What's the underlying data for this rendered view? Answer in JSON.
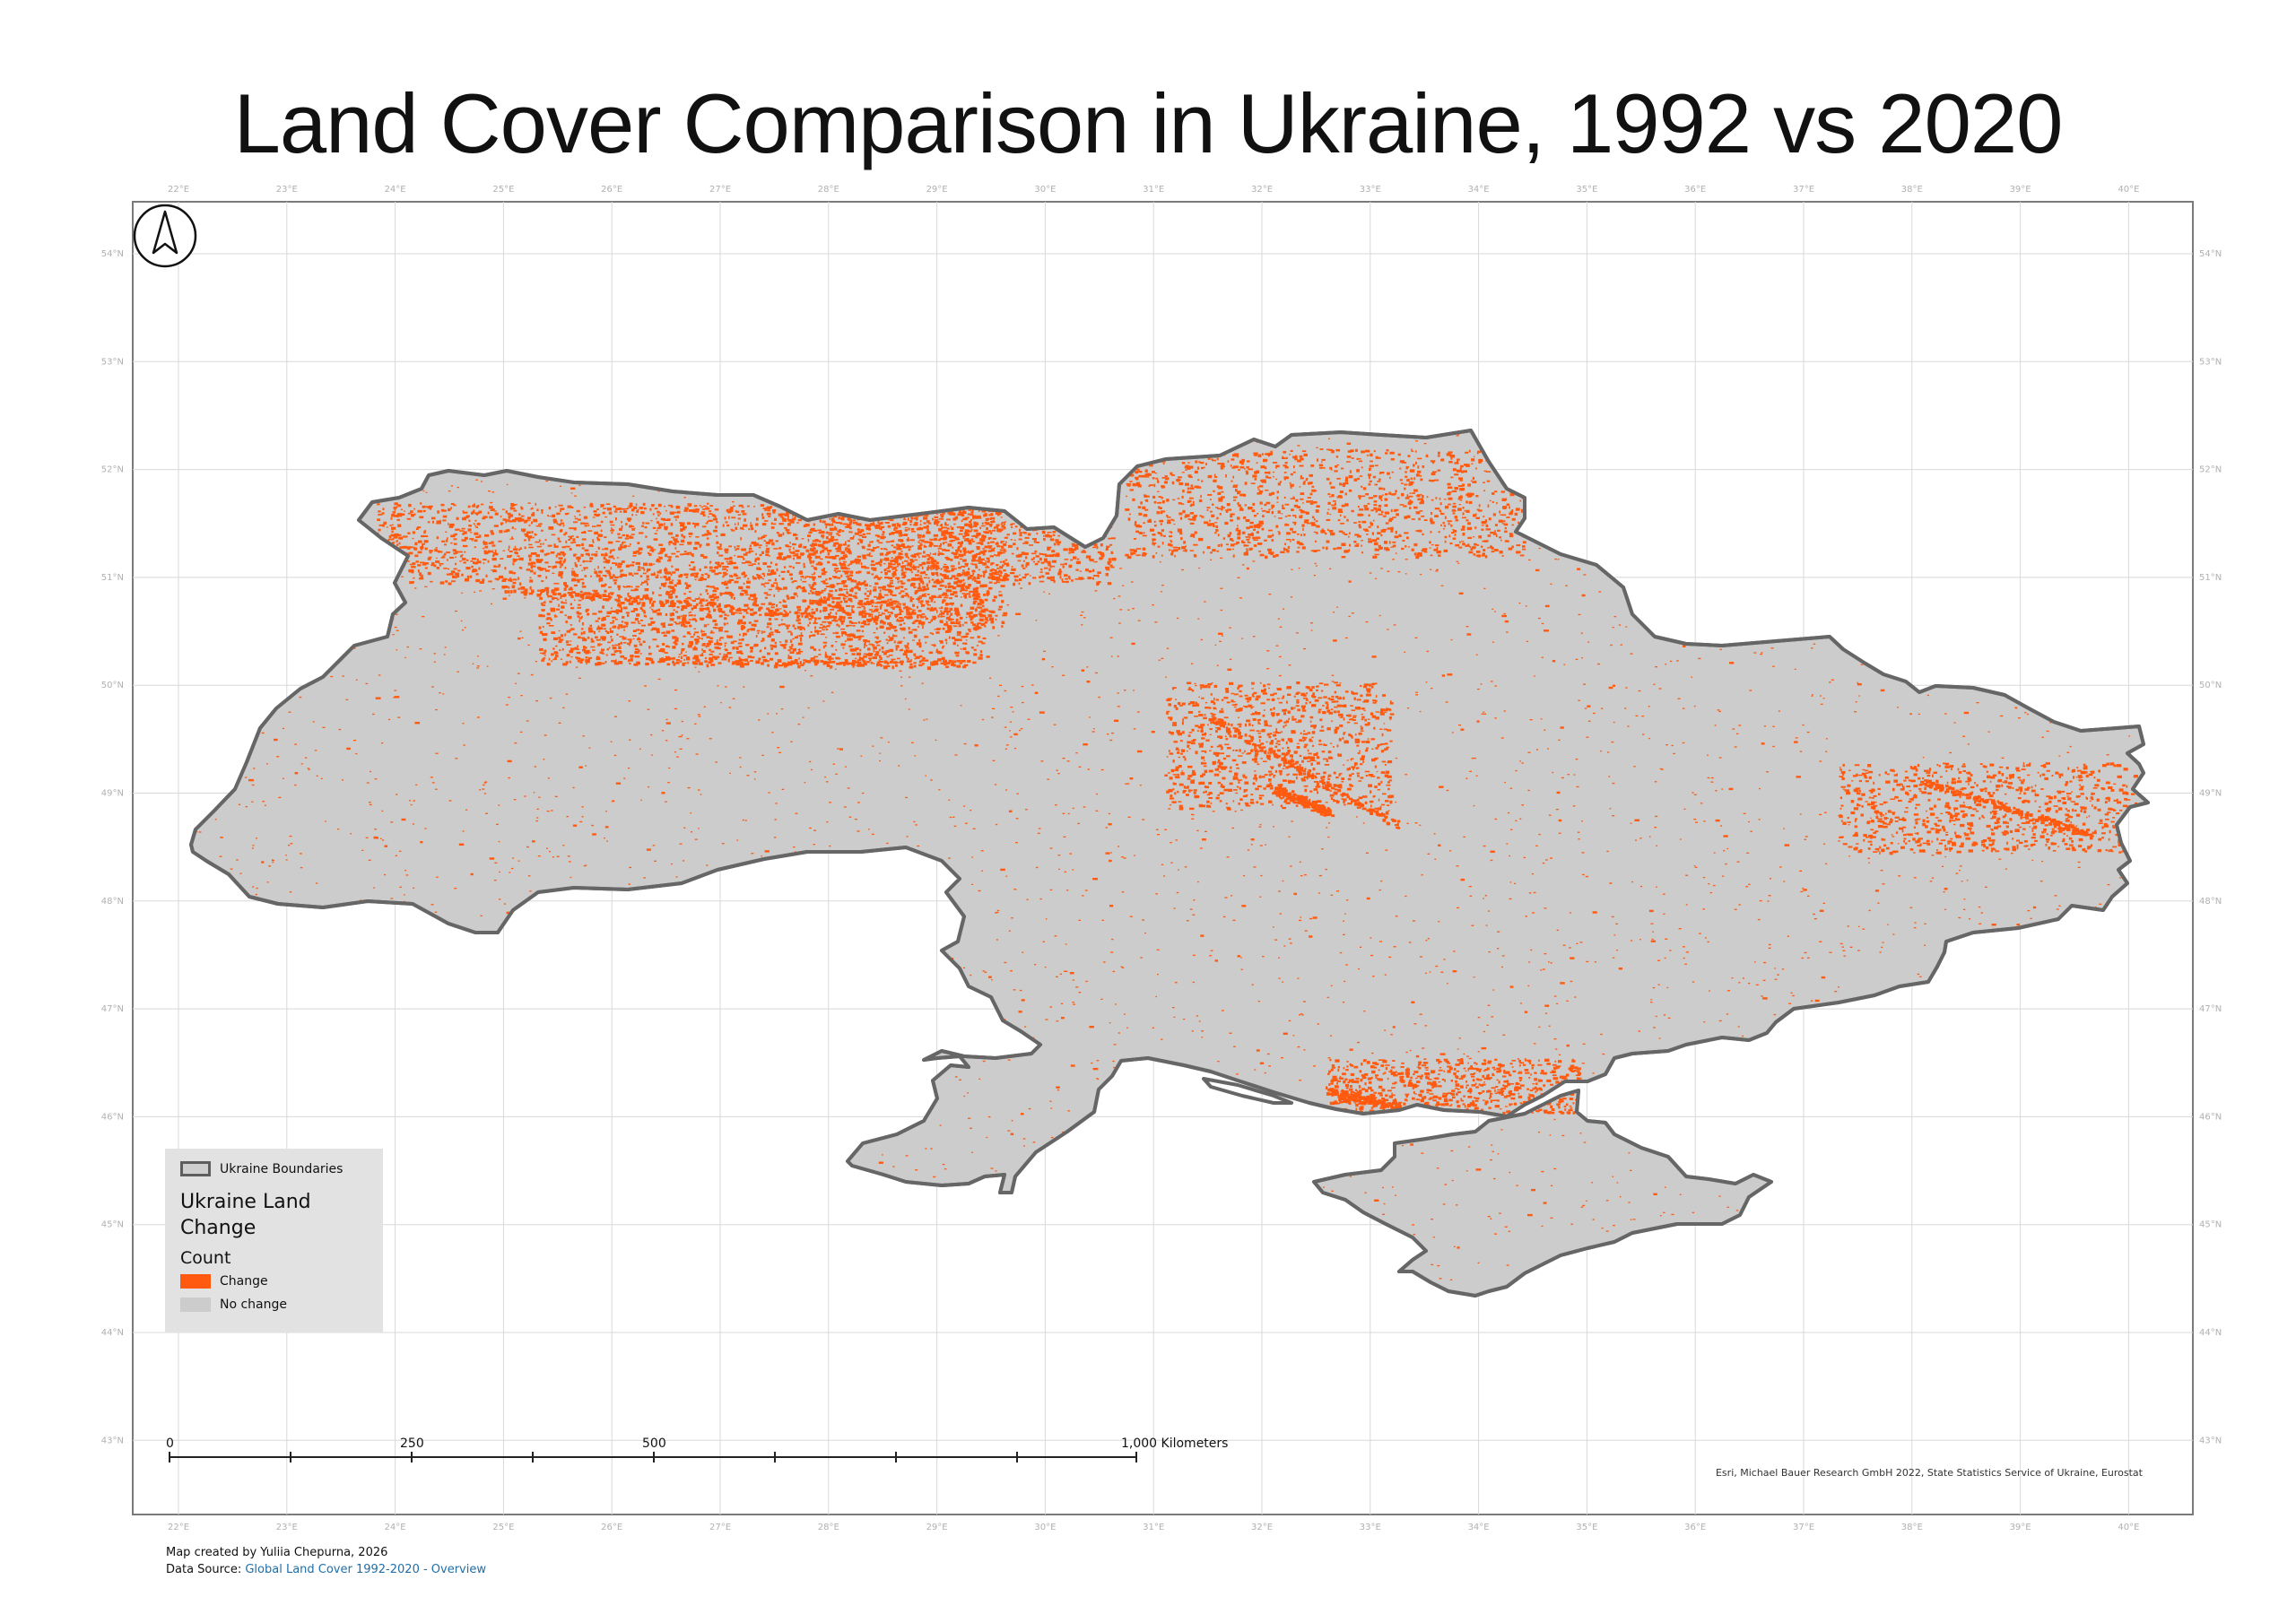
{
  "title": "Land Cover Comparison in Ukraine, 1992 vs 2020",
  "north_arrow_icon": "north-arrow-icon",
  "graticule": {
    "longitudes": [
      "22°E",
      "23°E",
      "24°E",
      "25°E",
      "26°E",
      "27°E",
      "28°E",
      "29°E",
      "30°E",
      "31°E",
      "32°E",
      "33°E",
      "34°E",
      "35°E",
      "36°E",
      "37°E",
      "38°E",
      "39°E",
      "40°E"
    ],
    "latitudes": [
      "54°N",
      "53°N",
      "52°N",
      "51°N",
      "50°N",
      "49°N",
      "48°N",
      "47°N",
      "46°N",
      "45°N",
      "44°N",
      "43°N"
    ]
  },
  "legend": {
    "boundary_label": "Ukraine Boundaries",
    "layer_title": "Ukraine Land Change",
    "field": "Count",
    "classes": [
      {
        "label": "Change",
        "color": "#ff5a0f"
      },
      {
        "label": "No change",
        "color": "#cccccc"
      }
    ]
  },
  "scale_bar": {
    "labels": [
      "0",
      "250",
      "500",
      "1,000 Kilometers"
    ]
  },
  "attribution": "Esri, Michael Bauer Research GmbH 2022, State Statistics Service of Ukraine, Eurostat",
  "credits": {
    "author": "Map created by Yuliia Chepurna, 2026",
    "source_prefix": "Data Source: ",
    "source_link": "Global Land Cover 1992-2020 - Overview"
  },
  "colors": {
    "land": "#cccccc",
    "border": "#666666",
    "change": "#ff5a0f",
    "grid": "#d8d8d8"
  }
}
